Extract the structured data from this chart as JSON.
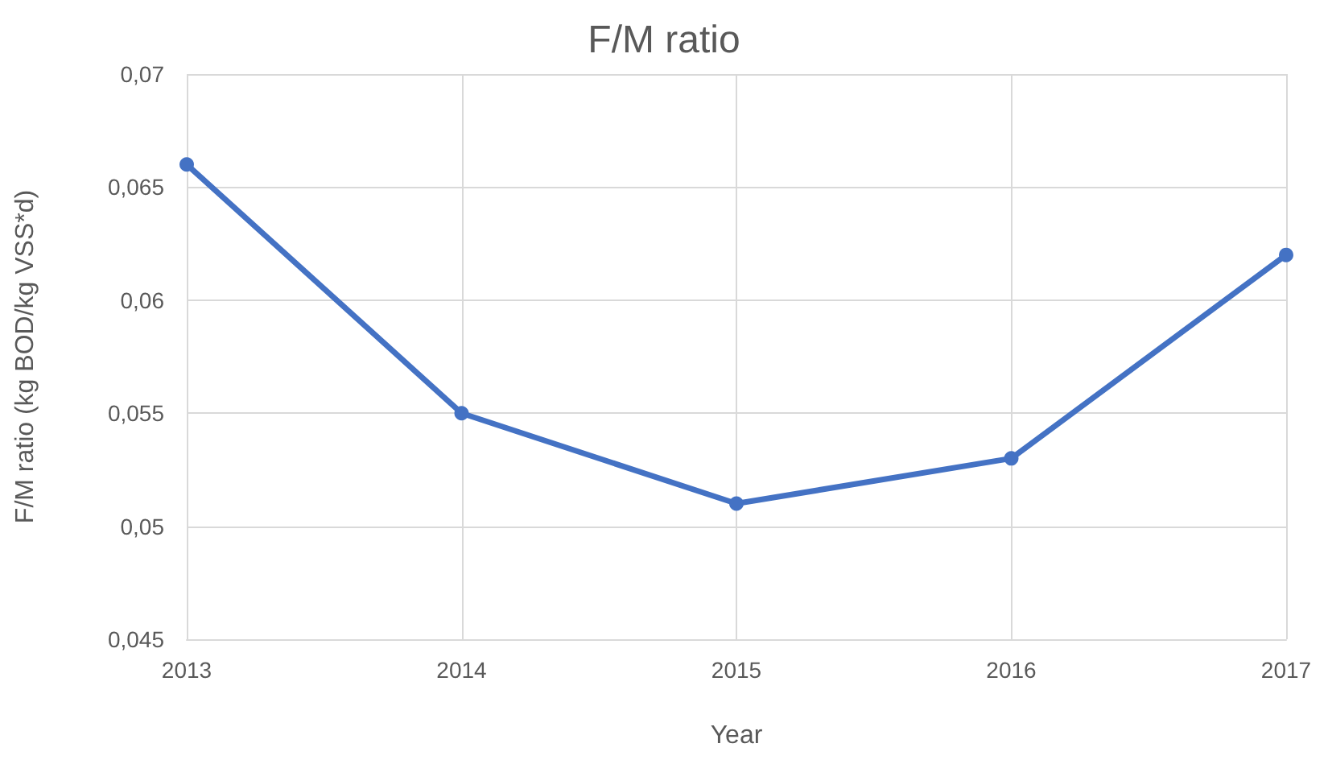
{
  "chart_data": {
    "type": "line",
    "title": "F/M ratio",
    "xlabel": "Year",
    "ylabel": "F/M ratio (kg BOD/kg VSS*d)",
    "x": [
      2013,
      2014,
      2015,
      2016,
      2017
    ],
    "series": [
      {
        "color": "#4472c4",
        "values": [
          0.066,
          0.055,
          0.051,
          0.053,
          0.062
        ]
      }
    ],
    "xlim": [
      2013,
      2017
    ],
    "xticks": [
      2013,
      2014,
      2015,
      2016,
      2017
    ],
    "ylim": [
      0.045,
      0.07
    ],
    "yticks": [
      {
        "value": 0.045,
        "label": "0,045"
      },
      {
        "value": 0.05,
        "label": "0,05"
      },
      {
        "value": 0.055,
        "label": "0,055"
      },
      {
        "value": 0.06,
        "label": "0,06"
      },
      {
        "value": 0.065,
        "label": "0,065"
      },
      {
        "value": 0.07,
        "label": "0,07"
      }
    ],
    "grid": true,
    "marker": "circle",
    "line_style": "solid"
  }
}
